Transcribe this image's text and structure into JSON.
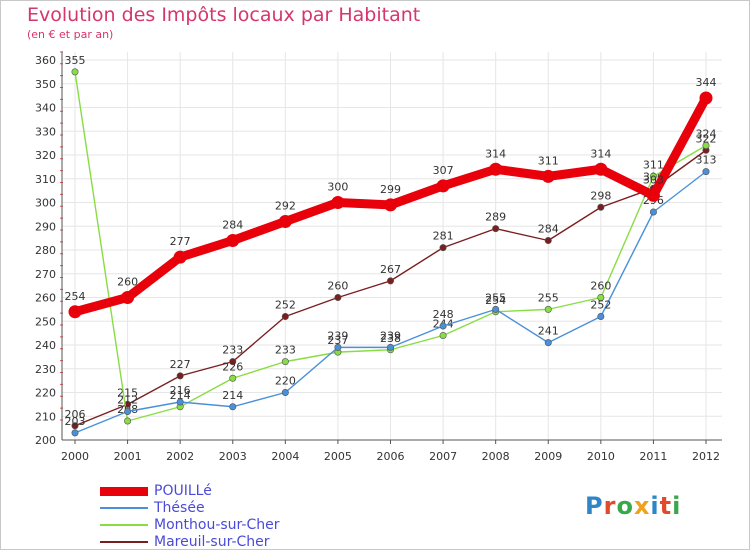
{
  "header": {
    "title": "Evolution des Impôts locaux par Habitant",
    "subtitle": "(en € et par an)"
  },
  "logo": {
    "text": "Proxiti",
    "colors": [
      "#2e86c9",
      "#e24a2c",
      "#39a84a",
      "#f0a21c",
      "#2e86c9",
      "#e24a2c",
      "#39a84a"
    ]
  },
  "chart_data": {
    "type": "line",
    "title": "Evolution des Impôts locaux par Habitant",
    "subtitle": "(en € et par an)",
    "x": [
      "2000",
      "2001",
      "2002",
      "2003",
      "2004",
      "2005",
      "2006",
      "2007",
      "2008",
      "2009",
      "2010",
      "2011",
      "2012"
    ],
    "yticks": [
      200,
      210,
      220,
      230,
      240,
      250,
      260,
      270,
      280,
      290,
      300,
      310,
      320,
      330,
      340,
      350,
      360
    ],
    "ylim": [
      200,
      360
    ],
    "grid": true,
    "legend_position": "bottom-left",
    "series": [
      {
        "name": "POUILLé",
        "color": "#e8000a",
        "values": [
          254,
          260,
          277,
          284,
          292,
          300,
          299,
          307,
          314,
          311,
          314,
          303,
          344
        ]
      },
      {
        "name": "Thésée",
        "color": "#4a90d9",
        "values": [
          203,
          212,
          216,
          214,
          220,
          239,
          239,
          248,
          255,
          241,
          252,
          296,
          313
        ]
      },
      {
        "name": "Monthou-sur-Cher",
        "color": "#88dd44",
        "values": [
          355,
          208,
          214,
          226,
          233,
          237,
          238,
          244,
          254,
          255,
          260,
          311,
          324
        ]
      },
      {
        "name": "Mareuil-sur-Cher",
        "color": "#7a1f1f",
        "values": [
          206,
          215,
          227,
          233,
          252,
          260,
          267,
          281,
          289,
          284,
          298,
          306,
          322
        ]
      }
    ]
  }
}
